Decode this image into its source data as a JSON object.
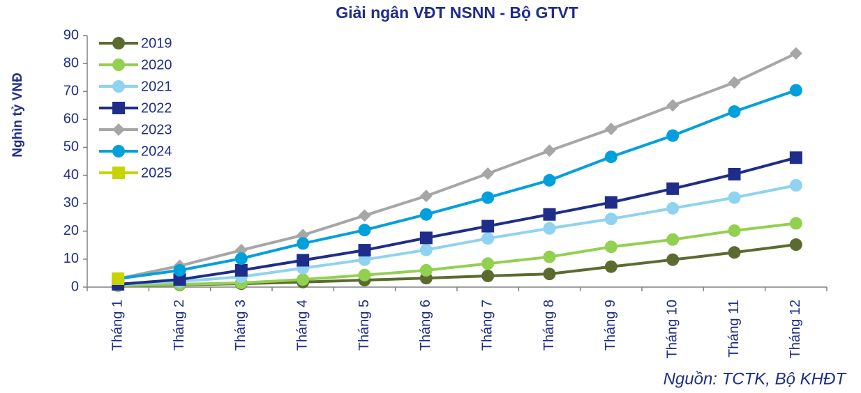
{
  "chart_data": {
    "type": "line",
    "title": "Giải ngân VĐT NSNN - Bộ GTVT",
    "y_label": "Nghìn tỷ VNĐ",
    "source": "Nguồn: TCTK, Bộ KHĐT",
    "categories": [
      "Tháng 1",
      "Tháng 2",
      "Tháng 3",
      "Tháng 4",
      "Tháng 5",
      "Tháng 6",
      "Tháng 7",
      "Tháng 8",
      "Tháng 9",
      "Tháng 10",
      "Tháng 11",
      "Tháng 12"
    ],
    "ylim": [
      0,
      90
    ],
    "yticks": [
      0,
      10,
      20,
      30,
      40,
      50,
      60,
      70,
      80,
      90
    ],
    "legend": "upper left",
    "series": [
      {
        "name": "2019",
        "color": "#5b6b2f",
        "marker": "circle",
        "values": [
          0.5,
          0.8,
          1.2,
          1.8,
          2.5,
          3.2,
          4,
          4.7,
          7.3,
          9.8,
          12.4,
          15.2
        ]
      },
      {
        "name": "2020",
        "color": "#92d050",
        "marker": "circle",
        "values": [
          0.5,
          1,
          1.5,
          2.7,
          4.3,
          6,
          8.4,
          10.8,
          14.4,
          17,
          20.2,
          22.8
        ]
      },
      {
        "name": "2021",
        "color": "#8fd3f0",
        "marker": "circle",
        "values": [
          1,
          2,
          3.7,
          6.8,
          9.8,
          13.3,
          17.4,
          21,
          24.4,
          28.2,
          32,
          36.4
        ]
      },
      {
        "name": "2022",
        "color": "#1f2d8a",
        "marker": "square",
        "values": [
          1,
          2.7,
          6,
          9.6,
          13.2,
          17.6,
          21.8,
          26,
          30.3,
          35.2,
          40.4,
          46.3
        ]
      },
      {
        "name": "2023",
        "color": "#a6a6a6",
        "marker": "diamond",
        "values": [
          3,
          7.6,
          13.2,
          18.6,
          25.6,
          32.6,
          40.6,
          48.8,
          56.6,
          65,
          73.2,
          83.6
        ]
      },
      {
        "name": "2024",
        "color": "#00a0dc",
        "marker": "circle",
        "values": [
          3,
          6,
          10.2,
          15.6,
          20.4,
          26,
          32,
          38.2,
          46.6,
          54.2,
          62.8,
          70.4
        ]
      },
      {
        "name": "2025",
        "color": "#c8d400",
        "marker": "square",
        "values": [
          3,
          null,
          null,
          null,
          null,
          null,
          null,
          null,
          null,
          null,
          null,
          null
        ]
      }
    ]
  }
}
